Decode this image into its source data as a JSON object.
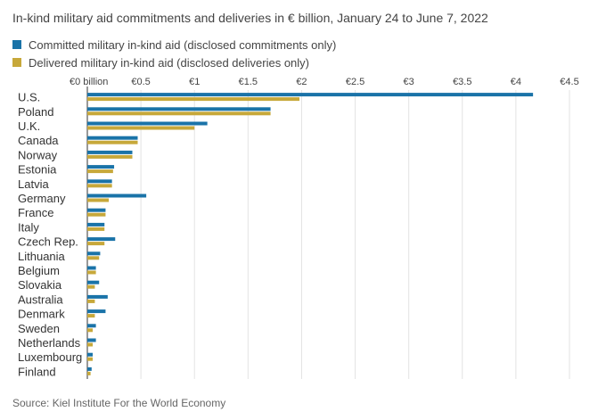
{
  "chart_data": {
    "type": "bar",
    "orientation": "horizontal",
    "title": "In-kind military aid commitments and deliveries in € billion, January 24 to June 7, 2022",
    "source": "Source: Kiel Institute For the World Economy",
    "xlim": [
      0,
      4.5
    ],
    "ticks": [
      {
        "value": 0,
        "label": "€0 billion"
      },
      {
        "value": 0.5,
        "label": "€0.5"
      },
      {
        "value": 1,
        "label": "€1"
      },
      {
        "value": 1.5,
        "label": "€1.5"
      },
      {
        "value": 2,
        "label": "€2"
      },
      {
        "value": 2.5,
        "label": "€2.5"
      },
      {
        "value": 3,
        "label": "€3"
      },
      {
        "value": 3.5,
        "label": "€3.5"
      },
      {
        "value": 4,
        "label": "€4"
      },
      {
        "value": 4.5,
        "label": "€4.5"
      }
    ],
    "grid": true,
    "legend_position": "top-left",
    "categories": [
      "U.S.",
      "Poland",
      "U.K.",
      "Canada",
      "Norway",
      "Estonia",
      "Latvia",
      "Germany",
      "France",
      "Italy",
      "Czech Rep.",
      "Lithuania",
      "Belgium",
      "Slovakia",
      "Australia",
      "Denmark",
      "Sweden",
      "Netherlands",
      "Luxembourg",
      "Finland"
    ],
    "series": [
      {
        "name": "Committed military in-kind aid (disclosed commitments only)",
        "color": "#1a73a8",
        "values": [
          4.16,
          1.71,
          1.12,
          0.47,
          0.42,
          0.25,
          0.23,
          0.55,
          0.17,
          0.16,
          0.26,
          0.12,
          0.08,
          0.11,
          0.19,
          0.17,
          0.08,
          0.08,
          0.05,
          0.04
        ]
      },
      {
        "name": "Delivered military in-kind aid (disclosed deliveries only)",
        "color": "#c7a83a",
        "values": [
          1.98,
          1.71,
          1.0,
          0.47,
          0.42,
          0.24,
          0.23,
          0.2,
          0.17,
          0.16,
          0.16,
          0.11,
          0.08,
          0.07,
          0.07,
          0.07,
          0.05,
          0.05,
          0.05,
          0.03
        ]
      }
    ]
  }
}
